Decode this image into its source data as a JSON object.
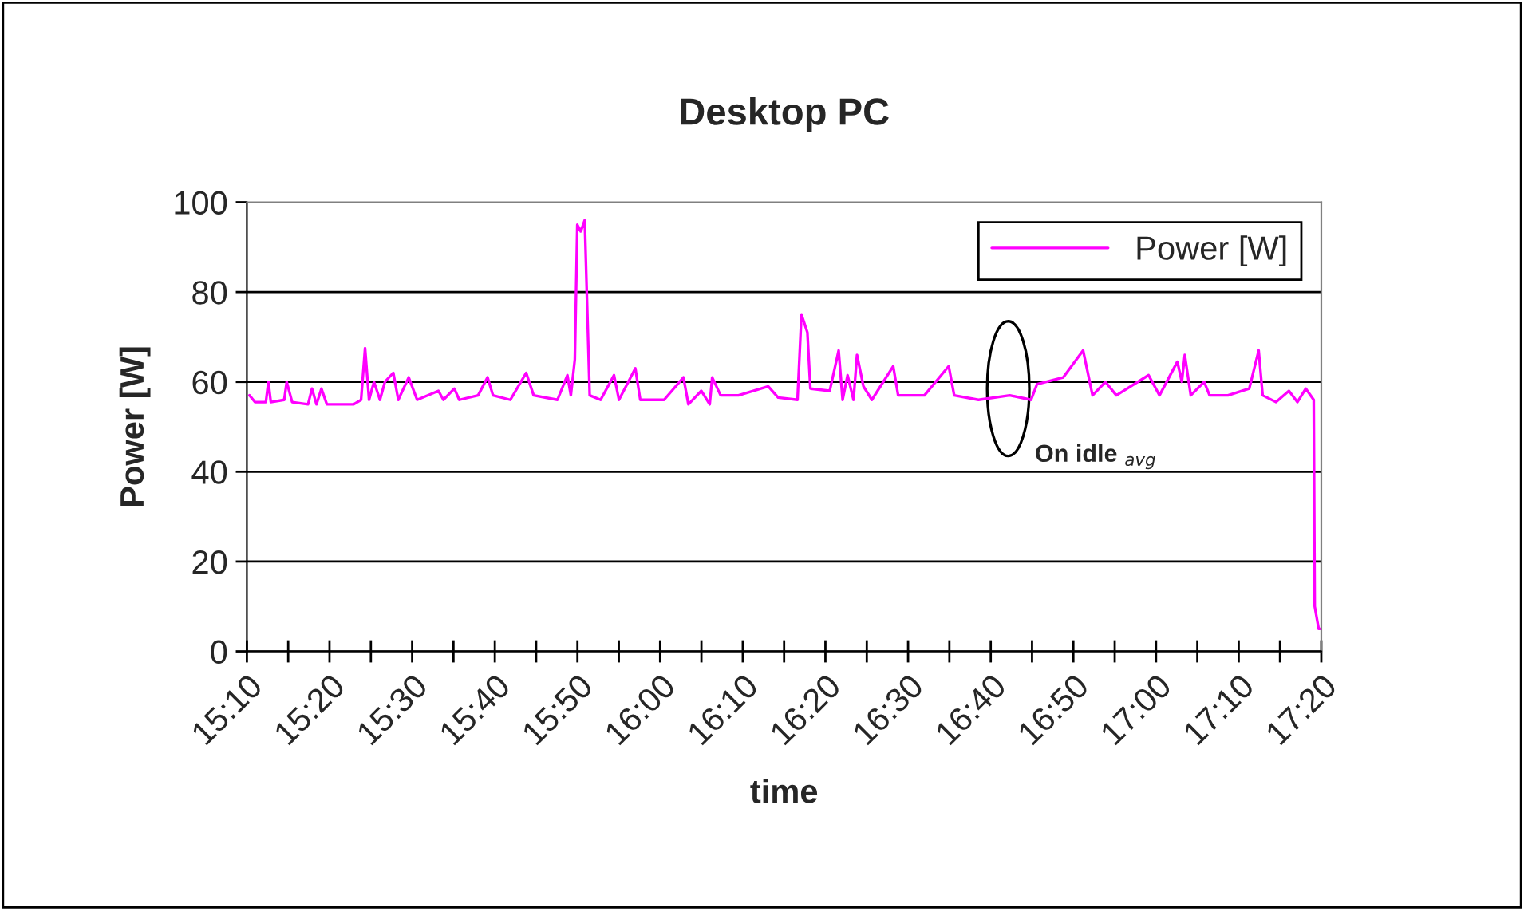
{
  "chart_data": {
    "type": "line",
    "title": "Desktop PC",
    "xlabel": "time",
    "ylabel": "Power [W]",
    "series": [
      {
        "name": "Power [W]",
        "color": "#ff00ff",
        "line_style": "solid",
        "marker": "none",
        "x": [
          15.172,
          15.183,
          15.205,
          15.21,
          15.215,
          15.242,
          15.247,
          15.258,
          15.29,
          15.298,
          15.307,
          15.317,
          15.328,
          15.348,
          15.382,
          15.397,
          15.405,
          15.413,
          15.423,
          15.435,
          15.445,
          15.462,
          15.472,
          15.493,
          15.51,
          15.553,
          15.563,
          15.585,
          15.595,
          15.633,
          15.652,
          15.663,
          15.698,
          15.73,
          15.745,
          15.793,
          15.813,
          15.82,
          15.828,
          15.833,
          15.84,
          15.848,
          15.858,
          15.88,
          15.907,
          15.917,
          15.95,
          15.96,
          16.008,
          16.047,
          16.057,
          16.083,
          16.1,
          16.105,
          16.122,
          16.158,
          16.218,
          16.238,
          16.277,
          16.285,
          16.297,
          16.303,
          16.342,
          16.36,
          16.368,
          16.378,
          16.39,
          16.397,
          16.41,
          16.427,
          16.47,
          16.48,
          16.533,
          16.582,
          16.593,
          16.642,
          16.705,
          16.748,
          16.76,
          16.813,
          16.853,
          16.872,
          16.898,
          16.92,
          16.985,
          17.007,
          17.043,
          17.052,
          17.058,
          17.07,
          17.097,
          17.108,
          17.145,
          17.188,
          17.207,
          17.215,
          17.242,
          17.268,
          17.285,
          17.302,
          17.318,
          17.32,
          17.328,
          17.333
        ],
        "values": [
          57,
          55.5,
          55.5,
          60,
          55.5,
          56,
          60,
          55.5,
          55,
          58.5,
          55,
          58.5,
          55,
          55,
          55,
          56,
          67.5,
          56,
          60,
          56,
          60,
          62,
          56,
          61,
          56,
          58,
          56,
          58.5,
          56,
          57,
          61,
          57,
          56,
          62,
          57,
          56,
          61.5,
          57,
          65,
          95,
          93.5,
          96,
          57,
          56,
          61.5,
          56,
          63,
          56,
          56,
          61,
          55,
          58,
          55,
          61,
          57,
          57,
          59,
          56.5,
          56,
          75,
          71,
          58.5,
          58,
          67,
          56,
          61.5,
          56,
          66,
          59,
          56,
          63.5,
          57,
          57,
          63.5,
          57,
          56,
          57,
          56,
          59.5,
          61,
          67,
          57,
          60,
          57,
          61.5,
          57,
          64.5,
          60,
          66,
          57,
          60,
          57,
          57,
          58.5,
          67,
          57,
          55.5,
          58,
          55.5,
          58.5,
          56,
          10,
          5,
          5
        ]
      }
    ],
    "xlim": [
      15.1667,
      17.3333
    ],
    "xticks": [
      {
        "value": 15.1667,
        "label": "15:10"
      },
      {
        "value": 15.25,
        "label": null
      },
      {
        "value": 15.3333,
        "label": "15:20"
      },
      {
        "value": 15.4167,
        "label": null
      },
      {
        "value": 15.5,
        "label": "15:30"
      },
      {
        "value": 15.5833,
        "label": null
      },
      {
        "value": 15.6667,
        "label": "15:40"
      },
      {
        "value": 15.75,
        "label": null
      },
      {
        "value": 15.8333,
        "label": "15:50"
      },
      {
        "value": 15.9167,
        "label": null
      },
      {
        "value": 16.0,
        "label": "16:00"
      },
      {
        "value": 16.0833,
        "label": null
      },
      {
        "value": 16.1667,
        "label": "16:10"
      },
      {
        "value": 16.25,
        "label": null
      },
      {
        "value": 16.3333,
        "label": "16:20"
      },
      {
        "value": 16.4167,
        "label": null
      },
      {
        "value": 16.5,
        "label": "16:30"
      },
      {
        "value": 16.5833,
        "label": null
      },
      {
        "value": 16.6667,
        "label": "16:40"
      },
      {
        "value": 16.75,
        "label": null
      },
      {
        "value": 16.8333,
        "label": "16:50"
      },
      {
        "value": 16.9167,
        "label": null
      },
      {
        "value": 17.0,
        "label": "17:00"
      },
      {
        "value": 17.0833,
        "label": null
      },
      {
        "value": 17.1667,
        "label": "17:10"
      },
      {
        "value": 17.25,
        "label": null
      },
      {
        "value": 17.3333,
        "label": "17:20"
      }
    ],
    "ylim": [
      0,
      100
    ],
    "yticks": [
      0,
      20,
      40,
      60,
      80,
      100
    ],
    "grid": "y",
    "legend": "top right",
    "annotations": [
      {
        "text": "On idle $_{avg}$",
        "x": 16.702,
        "y": 57
      }
    ]
  }
}
